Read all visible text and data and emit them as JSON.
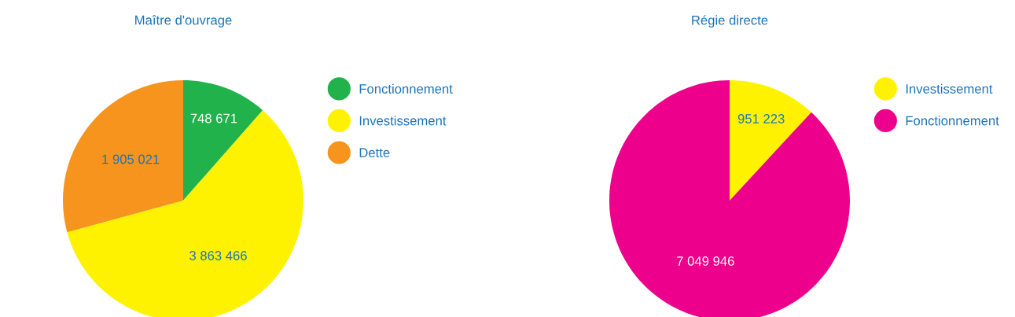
{
  "chart_data": [
    {
      "type": "pie",
      "title": "Maître d'ouvrage",
      "categories": [
        "Fonctionnement",
        "Investissement",
        "Dette"
      ],
      "values": [
        748671,
        3863466,
        1905021
      ],
      "colors": [
        "#22b24c",
        "#fff200",
        "#f7941d"
      ],
      "value_labels": [
        "748 671",
        "3 863 466",
        "1 905 021"
      ],
      "legend": "right"
    },
    {
      "type": "pie",
      "title": "Régie directe",
      "categories": [
        "Investissement",
        "Fonctionnement"
      ],
      "values": [
        951223,
        7049946
      ],
      "colors": [
        "#fff200",
        "#ec008c"
      ],
      "value_labels": [
        "951 223",
        "7 049 946"
      ],
      "legend": "right"
    }
  ]
}
